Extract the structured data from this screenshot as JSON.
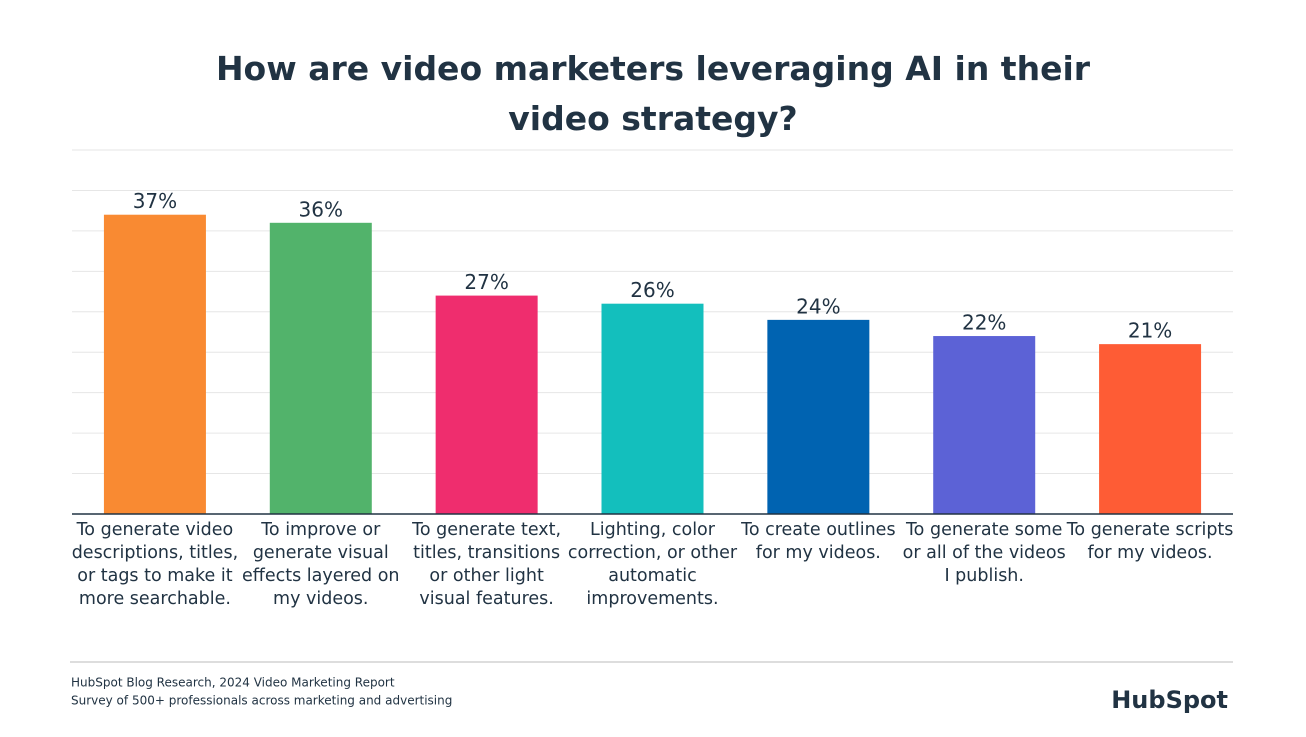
{
  "chart_data": {
    "type": "bar",
    "title": "How are video marketers leveraging AI in their video strategy?",
    "categories": [
      "To generate video descriptions, titles, or tags to make it more searchable.",
      "To improve or generate visual effects layered on my videos.",
      "To generate text, titles, transitions or other light visual features.",
      "Lighting, color correction, or other automatic improvements.",
      "To create outlines for my videos.",
      "To generate some or all of the videos I publish.",
      "To generate scripts for my videos."
    ],
    "values": [
      37,
      36,
      27,
      26,
      24,
      22,
      21
    ],
    "value_labels": [
      "37%",
      "36%",
      "27%",
      "26%",
      "24%",
      "22%",
      "21%"
    ],
    "colors": [
      "#f98a32",
      "#52b36b",
      "#ef2d6e",
      "#13bfbd",
      "#0063b1",
      "#5c62d6",
      "#fe5c35"
    ],
    "ylim": [
      0,
      45
    ],
    "yticks": [
      0,
      5,
      10,
      15,
      20,
      25,
      30,
      35,
      40,
      45
    ],
    "grid": true,
    "source": [
      "HubSpot Blog Research, 2024 Video Marketing Report",
      "Survey of 500+ professionals across marketing and advertising"
    ],
    "logo": "HubSpot"
  }
}
